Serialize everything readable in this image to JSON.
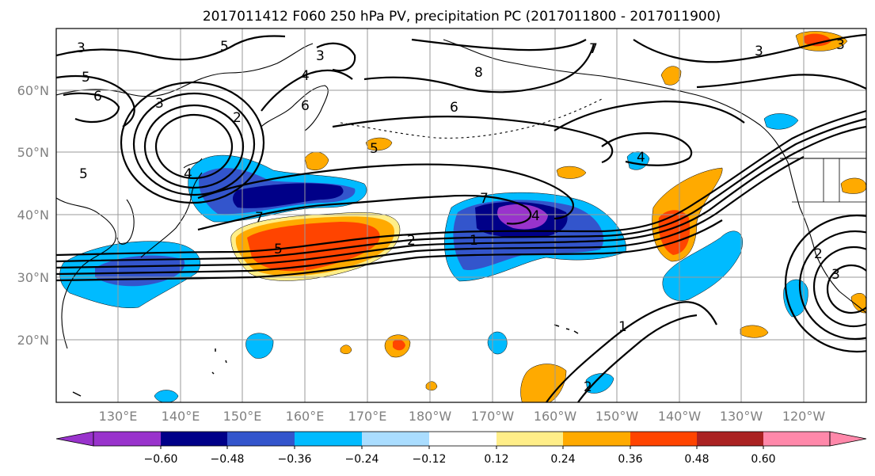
{
  "title": "2017011412 F060 250 hPa PV, precipitation PC (2017011800 - 2017011900)",
  "lat_labels": [
    "60°N",
    "50°N",
    "40°N",
    "30°N",
    "20°N"
  ],
  "lon_labels": [
    "130°E",
    "140°E",
    "150°E",
    "160°E",
    "170°E",
    "180°W",
    "170°W",
    "160°W",
    "150°W",
    "140°W",
    "130°W",
    "120°W"
  ],
  "colorbar": {
    "colors": [
      "#9933cc",
      "#000088",
      "#3355cc",
      "#00bbff",
      "#aaddff",
      "#ffffff",
      "#ffee88",
      "#ffaa00",
      "#ff4400",
      "#aa2222",
      "#ff88aa"
    ],
    "tick_labels": [
      "−0.60",
      "−0.48",
      "−0.36",
      "−0.24",
      "−0.12",
      "0.12",
      "0.24",
      "0.36",
      "0.48",
      "0.60"
    ]
  },
  "contour_labels": [
    "3",
    "5",
    "5",
    "6",
    "3",
    "2",
    "4",
    "6",
    "3",
    "8",
    "6",
    "7",
    "3",
    "5",
    "4",
    "3",
    "4",
    "7",
    "7",
    "2",
    "1",
    "4",
    "5",
    "1",
    "2",
    "3",
    "5",
    "2"
  ]
}
